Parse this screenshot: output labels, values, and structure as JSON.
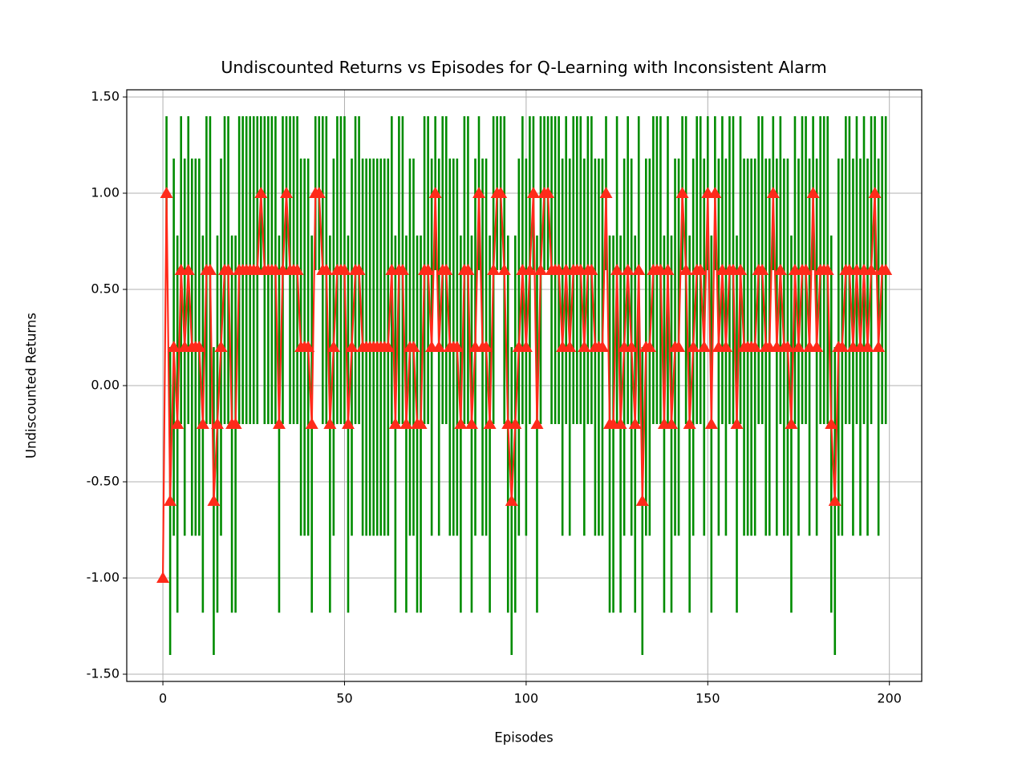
{
  "chart_data": {
    "type": "line",
    "title": "Undiscounted Returns vs Episodes for Q-Learning with Inconsistent Alarm",
    "x_label": "Episodes",
    "y_label": "Undiscounted Returns",
    "x": [
      0,
      1,
      2,
      3,
      4,
      5,
      6,
      7,
      8,
      9,
      10,
      11,
      12,
      13,
      14,
      15,
      16,
      17,
      18,
      19,
      20,
      21,
      22,
      23,
      24,
      25,
      26,
      27,
      28,
      29,
      30,
      31,
      32,
      33,
      34,
      35,
      36,
      37,
      38,
      39,
      40,
      41,
      42,
      43,
      44,
      45,
      46,
      47,
      48,
      49,
      50,
      51,
      52,
      53,
      54,
      55,
      56,
      57,
      58,
      59,
      60,
      61,
      62,
      63,
      64,
      65,
      66,
      67,
      68,
      69,
      70,
      71,
      72,
      73,
      74,
      75,
      76,
      77,
      78,
      79,
      80,
      81,
      82,
      83,
      84,
      85,
      86,
      87,
      88,
      89,
      90,
      91,
      92,
      93,
      94,
      95,
      96,
      97,
      98,
      99,
      100,
      101,
      102,
      103,
      104,
      105,
      106,
      107,
      108,
      109,
      110,
      111,
      112,
      113,
      114,
      115,
      116,
      117,
      118,
      119,
      120,
      121,
      122,
      123,
      124,
      125,
      126,
      127,
      128,
      129,
      130,
      131,
      132,
      133,
      134,
      135,
      136,
      137,
      138,
      139,
      140,
      141,
      142,
      143,
      144,
      145,
      146,
      147,
      148,
      149,
      150,
      151,
      152,
      153,
      154,
      155,
      156,
      157,
      158,
      159,
      160,
      161,
      162,
      163,
      164,
      165,
      166,
      167,
      168,
      169,
      170,
      171,
      172,
      173,
      174,
      175,
      176,
      177,
      178,
      179,
      180,
      181,
      182,
      183,
      184,
      185,
      186,
      187,
      188,
      189,
      190,
      191,
      192,
      193,
      194,
      195,
      196,
      197,
      198,
      199
    ],
    "values": [
      -1,
      1,
      -0.6,
      0.2,
      -0.2,
      0.6,
      0.2,
      0.6,
      0.2,
      0.2,
      0.2,
      -0.2,
      0.6,
      0.6,
      -0.6,
      -0.2,
      0.2,
      0.6,
      0.6,
      -0.2,
      -0.2,
      0.6,
      0.6,
      0.6,
      0.6,
      0.6,
      0.6,
      1,
      0.6,
      0.6,
      0.6,
      0.6,
      -0.2,
      0.6,
      1,
      0.6,
      0.6,
      0.6,
      0.2,
      0.2,
      0.2,
      -0.2,
      1,
      1,
      0.6,
      0.6,
      -0.2,
      0.2,
      0.6,
      0.6,
      0.6,
      -0.2,
      0.2,
      0.6,
      0.6,
      0.2,
      0.2,
      0.2,
      0.2,
      0.2,
      0.2,
      0.2,
      0.2,
      0.6,
      -0.2,
      0.6,
      0.6,
      -0.2,
      0.2,
      0.2,
      -0.2,
      -0.2,
      0.6,
      0.6,
      0.2,
      1,
      0.2,
      0.6,
      0.6,
      0.2,
      0.2,
      0.2,
      -0.2,
      0.6,
      0.6,
      -0.2,
      0.2,
      1,
      0.2,
      0.2,
      -0.2,
      0.6,
      1,
      1,
      0.6,
      -0.2,
      -0.6,
      -0.2,
      0.2,
      0.6,
      0.2,
      0.6,
      1,
      -0.2,
      0.6,
      1,
      1,
      0.6,
      0.6,
      0.6,
      0.2,
      0.6,
      0.2,
      0.6,
      0.6,
      0.6,
      0.2,
      0.6,
      0.6,
      0.2,
      0.2,
      0.2,
      1,
      -0.2,
      -0.2,
      0.6,
      -0.2,
      0.2,
      0.6,
      0.2,
      -0.2,
      0.6,
      -0.6,
      0.2,
      0.2,
      0.6,
      0.6,
      0.6,
      -0.2,
      0.6,
      -0.2,
      0.2,
      0.2,
      1,
      0.6,
      -0.2,
      0.2,
      0.6,
      0.6,
      0.2,
      1,
      -0.2,
      1,
      0.2,
      0.6,
      0.2,
      0.6,
      0.6,
      -0.2,
      0.6,
      0.2,
      0.2,
      0.2,
      0.2,
      0.6,
      0.6,
      0.2,
      0.2,
      1,
      0.2,
      0.6,
      0.2,
      0.2,
      -0.2,
      0.6,
      0.2,
      0.6,
      0.6,
      0.2,
      1,
      0.2,
      0.6,
      0.6,
      0.6,
      -0.2,
      -0.6,
      0.2,
      0.2,
      0.6,
      0.6,
      0.2,
      0.6,
      0.2,
      0.6,
      0.2,
      0.6,
      1,
      0.2,
      0.6,
      0.6
    ],
    "errors": [
      0,
      0.4,
      0.8,
      0.98,
      0.98,
      0.8,
      0.98,
      0.8,
      0.98,
      0.98,
      0.98,
      0.98,
      0.8,
      0.8,
      0.8,
      0.98,
      0.98,
      0.8,
      0.8,
      0.98,
      0.98,
      0.8,
      0.8,
      0.8,
      0.8,
      0.8,
      0.8,
      0.4,
      0.8,
      0.8,
      0.8,
      0.8,
      0.98,
      0.8,
      0.4,
      0.8,
      0.8,
      0.8,
      0.98,
      0.98,
      0.98,
      0.98,
      0.4,
      0.4,
      0.8,
      0.8,
      0.98,
      0.98,
      0.8,
      0.8,
      0.8,
      0.98,
      0.98,
      0.8,
      0.8,
      0.98,
      0.98,
      0.98,
      0.98,
      0.98,
      0.98,
      0.98,
      0.98,
      0.8,
      0.98,
      0.8,
      0.8,
      0.98,
      0.98,
      0.98,
      0.98,
      0.98,
      0.8,
      0.8,
      0.98,
      0.4,
      0.98,
      0.8,
      0.8,
      0.98,
      0.98,
      0.98,
      0.98,
      0.8,
      0.8,
      0.98,
      0.98,
      0.4,
      0.98,
      0.98,
      0.98,
      0.8,
      0.4,
      0.4,
      0.8,
      0.98,
      0.8,
      0.98,
      0.98,
      0.8,
      0.98,
      0.8,
      0.4,
      0.98,
      0.8,
      0.4,
      0.4,
      0.8,
      0.8,
      0.8,
      0.98,
      0.8,
      0.98,
      0.8,
      0.8,
      0.8,
      0.98,
      0.8,
      0.8,
      0.98,
      0.98,
      0.98,
      0.4,
      0.98,
      0.98,
      0.8,
      0.98,
      0.98,
      0.8,
      0.98,
      0.98,
      0.8,
      0.8,
      0.98,
      0.98,
      0.8,
      0.8,
      0.8,
      0.98,
      0.8,
      0.98,
      0.98,
      0.98,
      0.4,
      0.8,
      0.98,
      0.98,
      0.8,
      0.8,
      0.98,
      0.4,
      0.98,
      0.4,
      0.98,
      0.8,
      0.98,
      0.8,
      0.8,
      0.98,
      0.8,
      0.98,
      0.98,
      0.98,
      0.98,
      0.8,
      0.8,
      0.98,
      0.98,
      0.4,
      0.98,
      0.8,
      0.98,
      0.98,
      0.98,
      0.8,
      0.98,
      0.8,
      0.8,
      0.98,
      0.4,
      0.98,
      0.8,
      0.8,
      0.8,
      0.98,
      0.8,
      0.98,
      0.98,
      0.8,
      0.8,
      0.98,
      0.8,
      0.98,
      0.8,
      0.98,
      0.8,
      0.4,
      0.98,
      0.8,
      0.8
    ],
    "color": "#ff2a1a",
    "error_color": "#008c00",
    "xlim": [
      -9.95,
      208.9
    ],
    "ylim": [
      -1.5375,
      1.5375
    ],
    "xticks": [
      0,
      50,
      100,
      150,
      200
    ],
    "yticks": [
      {
        "value": -1.5,
        "label": "-1.50"
      },
      {
        "value": -1,
        "label": "-1.00"
      },
      {
        "value": -0.5,
        "label": "-0.50"
      },
      {
        "value": 0,
        "label": "0.00"
      },
      {
        "value": 0.5,
        "label": "0.50"
      },
      {
        "value": 1,
        "label": "1.00"
      },
      {
        "value": 1.5,
        "label": "1.50"
      }
    ],
    "grid": true
  }
}
